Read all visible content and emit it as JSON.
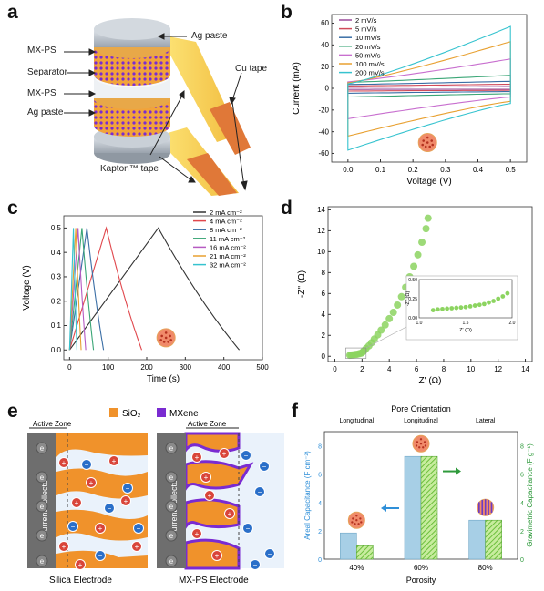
{
  "panels": {
    "a": {
      "letter": "a",
      "labels": {
        "mxps_top": "MX-PS",
        "separator": "Separator",
        "mxps_bottom": "MX-PS",
        "ag_left": "Ag paste",
        "ag_right": "Ag paste",
        "cu_tape": "Cu tape",
        "kapton": "Kapton™ tape"
      }
    },
    "b": {
      "letter": "b"
    },
    "c": {
      "letter": "c"
    },
    "d": {
      "letter": "d"
    },
    "e": {
      "letter": "e",
      "legend": {
        "sio2": "SiO₂",
        "mxene": "MXene"
      },
      "active_zone": "Active Zone",
      "current_collector": "Current collector",
      "electrode_left": "Silica Electrode",
      "electrode_right": "MX-PS Electrode",
      "electron": "e",
      "colors": {
        "sio2": "#f0922b",
        "mxene": "#7a2bd1",
        "collector": "#6e6e6e",
        "cation": "#d9453a",
        "anion": "#2a6fc9"
      }
    },
    "f": {
      "letter": "f"
    }
  },
  "chart_data": [
    {
      "id": "b",
      "type": "line",
      "xlabel": "Voltage (V)",
      "ylabel": "Current (mA)",
      "xlim": [
        -0.05,
        0.55
      ],
      "ylim": [
        -68,
        68
      ],
      "xticks": [
        0.0,
        0.1,
        0.2,
        0.3,
        0.4,
        0.5
      ],
      "yticks": [
        -60,
        -40,
        -20,
        0,
        20,
        40,
        60
      ],
      "legend_position": "top-left",
      "series": [
        {
          "name": "2 mV/s",
          "color": "#9a4a9a",
          "upper_start": 1.0,
          "upper_end": 1.6,
          "lower_start": -1.0,
          "lower_end": -0.8
        },
        {
          "name": "5 mV/s",
          "color": "#d04a5a",
          "upper_start": 2.2,
          "upper_end": 3.8,
          "lower_start": -2.5,
          "lower_end": -1.8
        },
        {
          "name": "10 mV/s",
          "color": "#3a6ea5",
          "upper_start": 3.5,
          "upper_end": 6.5,
          "lower_start": -4.5,
          "lower_end": -3.0
        },
        {
          "name": "20 mV/s",
          "color": "#3aa676",
          "upper_start": 5.5,
          "upper_end": 12.0,
          "lower_start": -8.0,
          "lower_end": -5.0
        },
        {
          "name": "50 mV/s",
          "color": "#c86fcf",
          "upper_start": 6.0,
          "upper_end": 27.0,
          "lower_start": -28.0,
          "lower_end": -8.0
        },
        {
          "name": "100 mV/s",
          "color": "#e8a030",
          "upper_start": 5.0,
          "upper_end": 43.0,
          "lower_start": -44.0,
          "lower_end": -12.0
        },
        {
          "name": "200 mV/s",
          "color": "#36c3cf",
          "upper_start": 4.0,
          "upper_end": 57.0,
          "lower_start": -57.0,
          "lower_end": -14.0
        }
      ]
    },
    {
      "id": "c",
      "type": "line",
      "xlabel": "Time (s)",
      "ylabel": "Voltage (V)",
      "xlim": [
        -15,
        500
      ],
      "ylim": [
        -0.04,
        0.55
      ],
      "xticks": [
        0,
        100,
        200,
        300,
        400,
        500
      ],
      "yticks": [
        0.0,
        0.1,
        0.2,
        0.3,
        0.4,
        0.5
      ],
      "legend_position": "top-right",
      "series": [
        {
          "name": "2 mA cm⁻²",
          "color": "#333333",
          "charge_end": 230,
          "discharge_end": 440
        },
        {
          "name": "4 mA cm⁻²",
          "color": "#e0474c",
          "charge_end": 95,
          "discharge_end": 187
        },
        {
          "name": "8 mA cm⁻²",
          "color": "#3a6ea5",
          "charge_end": 45,
          "discharge_end": 88
        },
        {
          "name": "11 mA cm⁻²",
          "color": "#3aa676",
          "charge_end": 32,
          "discharge_end": 62
        },
        {
          "name": "16 mA cm⁻²",
          "color": "#b65bc2",
          "charge_end": 22,
          "discharge_end": 42
        },
        {
          "name": "21 mA cm⁻²",
          "color": "#e8a030",
          "charge_end": 16,
          "discharge_end": 30
        },
        {
          "name": "32 mA cm⁻²",
          "color": "#36c3cf",
          "charge_end": 10,
          "discharge_end": 19
        }
      ]
    },
    {
      "id": "d",
      "type": "scatter",
      "xlabel": "Z' (Ω)",
      "ylabel": "-Z'' (Ω)",
      "xlim": [
        -0.5,
        14.5
      ],
      "ylim": [
        -0.5,
        14.3
      ],
      "xticks": [
        0,
        2,
        4,
        6,
        8,
        10,
        12,
        14
      ],
      "yticks": [
        0,
        2,
        4,
        6,
        8,
        10,
        12,
        14
      ],
      "color": "#8cd460",
      "x": [
        1.1,
        1.2,
        1.35,
        1.5,
        1.65,
        1.8,
        1.95,
        2.05,
        2.15,
        2.3,
        2.5,
        2.7,
        2.9,
        3.15,
        3.4,
        3.7,
        4.0,
        4.3,
        4.6,
        4.9,
        5.2,
        5.5,
        5.8,
        6.1,
        6.4,
        6.7,
        6.85
      ],
      "y": [
        0.1,
        0.12,
        0.14,
        0.17,
        0.2,
        0.25,
        0.3,
        0.4,
        0.55,
        0.75,
        1.0,
        1.3,
        1.65,
        2.05,
        2.5,
        3.0,
        3.6,
        4.2,
        4.9,
        5.7,
        6.6,
        7.6,
        8.6,
        9.7,
        10.9,
        12.2,
        13.2
      ],
      "inset": {
        "xlabel": "Z' (Ω)",
        "ylabel": "-Z'' (Ω)",
        "xlim": [
          1.0,
          2.0
        ],
        "ylim": [
          0.0,
          0.5
        ],
        "xticks": [
          1.0,
          1.5,
          2.0
        ],
        "yticks": [
          0.0,
          0.25,
          0.5
        ],
        "x": [
          1.15,
          1.2,
          1.25,
          1.3,
          1.35,
          1.4,
          1.45,
          1.5,
          1.55,
          1.6,
          1.65,
          1.7,
          1.75,
          1.8,
          1.85,
          1.9,
          1.95
        ],
        "y": [
          0.1,
          0.11,
          0.115,
          0.12,
          0.125,
          0.13,
          0.135,
          0.14,
          0.15,
          0.16,
          0.17,
          0.18,
          0.2,
          0.22,
          0.25,
          0.28,
          0.32
        ]
      }
    },
    {
      "id": "f",
      "type": "bar",
      "title": "Pore Orientation",
      "xlabel": "Porosity",
      "ylabel": "Areal Capacitance (F cm⁻²)",
      "y2label": "Gravimetric Capacitance (F g⁻¹)",
      "ylim": [
        0,
        9
      ],
      "y2lim": [
        0,
        9
      ],
      "yticks": [
        0,
        2,
        4,
        6,
        8
      ],
      "categories": [
        "40%",
        "60%",
        "80%"
      ],
      "orientations": [
        "Longitudinal",
        "Longitudinal",
        "Lateral"
      ],
      "series": [
        {
          "name": "Areal",
          "axis": "left",
          "color": "#a7cfe6",
          "values": [
            1.85,
            7.25,
            2.75
          ]
        },
        {
          "name": "Gravimetric",
          "axis": "right",
          "color": "#8cd460",
          "hatched": true,
          "values": [
            0.95,
            7.25,
            2.75
          ]
        }
      ],
      "arrow_colors": {
        "left": "#2f8fd8",
        "right": "#2f9a3c"
      }
    }
  ]
}
